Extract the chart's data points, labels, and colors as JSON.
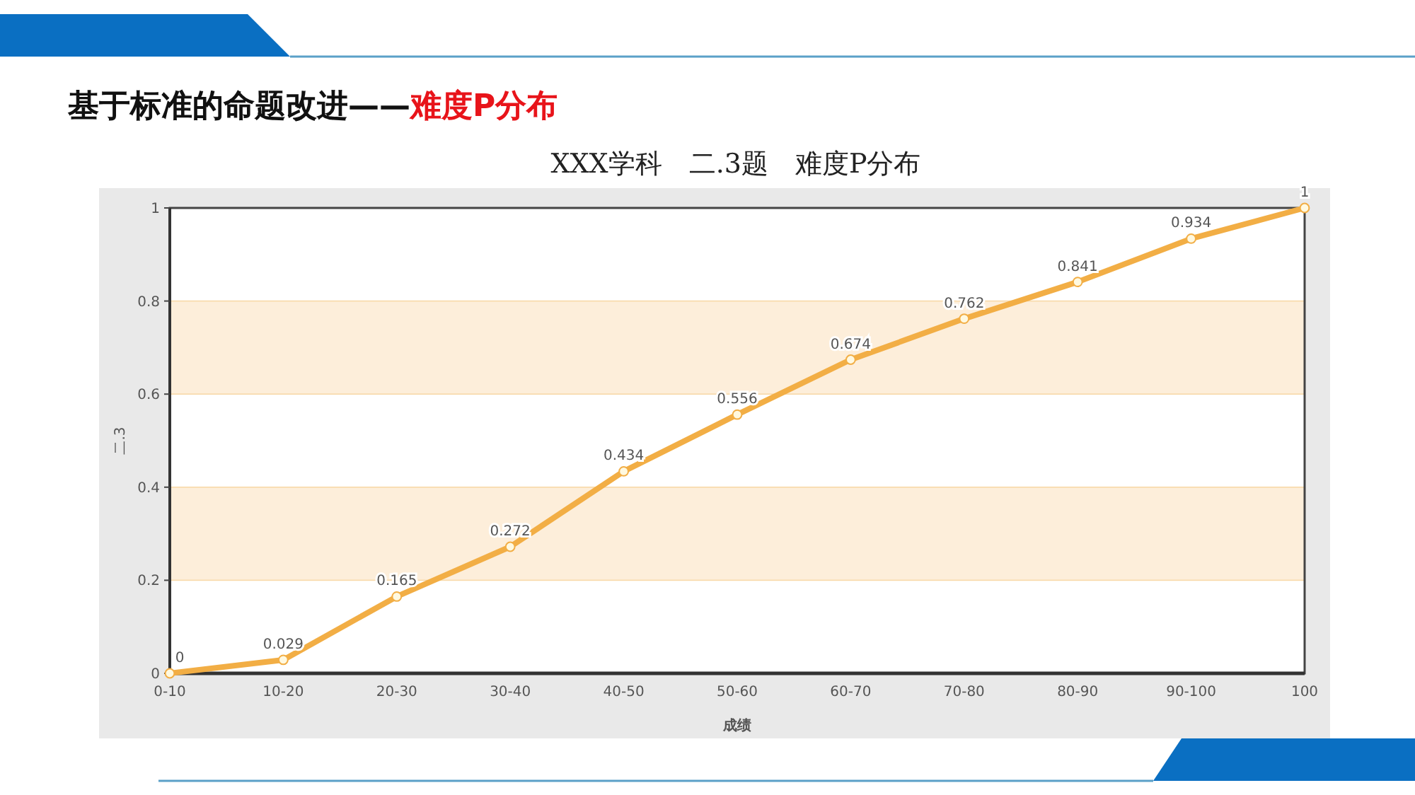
{
  "chart_data": {
    "type": "line",
    "title": "XXX学科　二.3题　难度P分布",
    "annotations": [
      "基于标准的命题改进——",
      "难度P分布"
    ],
    "xlabel": "成绩",
    "ylabel": "二.3",
    "categories": [
      "0-10",
      "10-20",
      "20-30",
      "30-40",
      "40-50",
      "50-60",
      "60-70",
      "70-80",
      "80-90",
      "90-100",
      "100"
    ],
    "series": [
      {
        "color": "#f2ae45",
        "values": [
          0,
          0.029,
          0.165,
          0.272,
          0.434,
          0.556,
          0.674,
          0.762,
          0.841,
          0.934,
          1
        ]
      }
    ],
    "ylim": [
      0,
      1
    ],
    "yticks": [
      0,
      0.2,
      0.4,
      0.6,
      0.8,
      1
    ],
    "bands": [
      {
        "axis": "y",
        "from": 0.2,
        "to": 0.4,
        "color": "#fdeeda"
      },
      {
        "axis": "y",
        "from": 0.6,
        "to": 0.8,
        "color": "#fdeeda"
      }
    ],
    "data_labels": true,
    "marker": "circle",
    "line_style": "solid"
  }
}
